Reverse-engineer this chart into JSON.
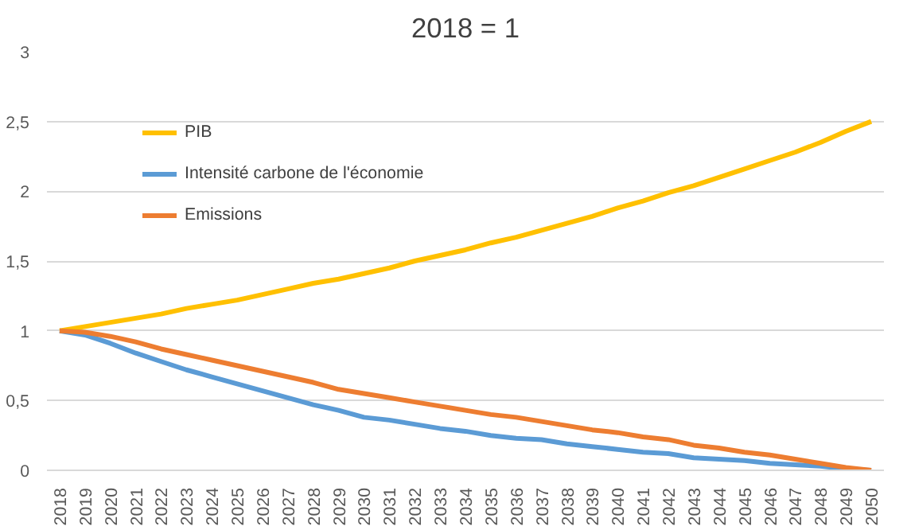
{
  "chart_data": {
    "type": "line",
    "title": "2018 = 1",
    "categories": [
      "2018",
      "2019",
      "2020",
      "2021",
      "2022",
      "2023",
      "2024",
      "2025",
      "2026",
      "2027",
      "2028",
      "2029",
      "2030",
      "2031",
      "2032",
      "2033",
      "2034",
      "2035",
      "2036",
      "2037",
      "2038",
      "2039",
      "2040",
      "2041",
      "2042",
      "2043",
      "2044",
      "2045",
      "2046",
      "2047",
      "2048",
      "2049",
      "2050"
    ],
    "series": [
      {
        "name": "PIB",
        "color": "#ffc000",
        "values": [
          1.0,
          1.03,
          1.06,
          1.09,
          1.12,
          1.16,
          1.19,
          1.22,
          1.26,
          1.3,
          1.34,
          1.37,
          1.41,
          1.45,
          1.5,
          1.54,
          1.58,
          1.63,
          1.67,
          1.72,
          1.77,
          1.82,
          1.88,
          1.93,
          1.99,
          2.04,
          2.1,
          2.16,
          2.22,
          2.28,
          2.35,
          2.43,
          2.5
        ]
      },
      {
        "name": "Intensité carbone de l'économie",
        "color": "#5b9bd5",
        "values": [
          1.0,
          0.97,
          0.91,
          0.84,
          0.78,
          0.72,
          0.67,
          0.62,
          0.57,
          0.52,
          0.47,
          0.43,
          0.38,
          0.36,
          0.33,
          0.3,
          0.28,
          0.25,
          0.23,
          0.22,
          0.19,
          0.17,
          0.15,
          0.13,
          0.12,
          0.09,
          0.08,
          0.07,
          0.05,
          0.04,
          0.03,
          0.01,
          0.0
        ]
      },
      {
        "name": "Emissions",
        "color": "#ed7d31",
        "values": [
          1.0,
          0.99,
          0.96,
          0.92,
          0.87,
          0.83,
          0.79,
          0.75,
          0.71,
          0.67,
          0.63,
          0.58,
          0.55,
          0.52,
          0.49,
          0.46,
          0.43,
          0.4,
          0.38,
          0.35,
          0.32,
          0.29,
          0.27,
          0.24,
          0.22,
          0.18,
          0.16,
          0.13,
          0.11,
          0.08,
          0.05,
          0.02,
          0.0
        ]
      }
    ],
    "ylim": [
      0,
      3
    ],
    "yticks": [
      0,
      {
        "value": 0.5,
        "label": "0,5"
      },
      1,
      {
        "value": 1.5,
        "label": "1,5"
      },
      2,
      {
        "value": 2.5,
        "label": "2,5"
      },
      3
    ],
    "grid": "y",
    "legend": "top left",
    "line_style": "solid"
  }
}
